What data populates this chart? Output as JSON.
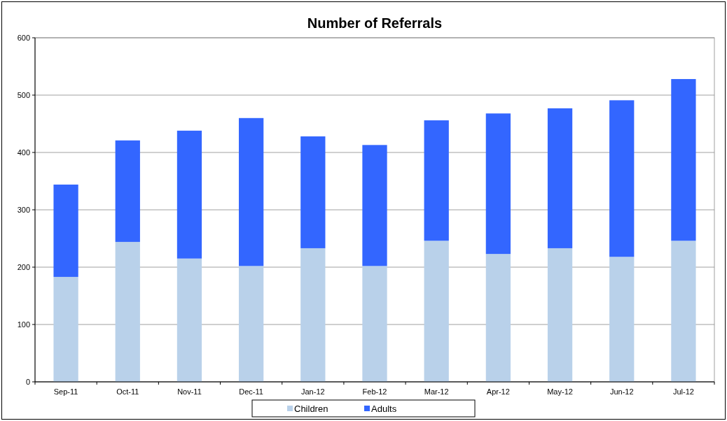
{
  "chart_data": {
    "type": "bar",
    "title": "Number of Referrals",
    "categories": [
      "Sep-11",
      "Oct-11",
      "Nov-11",
      "Dec-11",
      "Jan-12",
      "Feb-12",
      "Mar-12",
      "Apr-12",
      "May-12",
      "Jun-12",
      "Jul-12"
    ],
    "stacked": true,
    "series": [
      {
        "name": "Children",
        "color": "#b9d1ea",
        "values": [
          183,
          244,
          215,
          202,
          233,
          202,
          246,
          223,
          233,
          218,
          246
        ]
      },
      {
        "name": "Adults",
        "color": "#3366ff",
        "values": [
          161,
          177,
          223,
          258,
          195,
          211,
          210,
          245,
          244,
          273,
          282
        ]
      }
    ],
    "ylim": [
      0,
      600
    ],
    "yticks": [
      0,
      100,
      200,
      300,
      400,
      500,
      600
    ],
    "grid": "y",
    "legend": "bottom"
  }
}
